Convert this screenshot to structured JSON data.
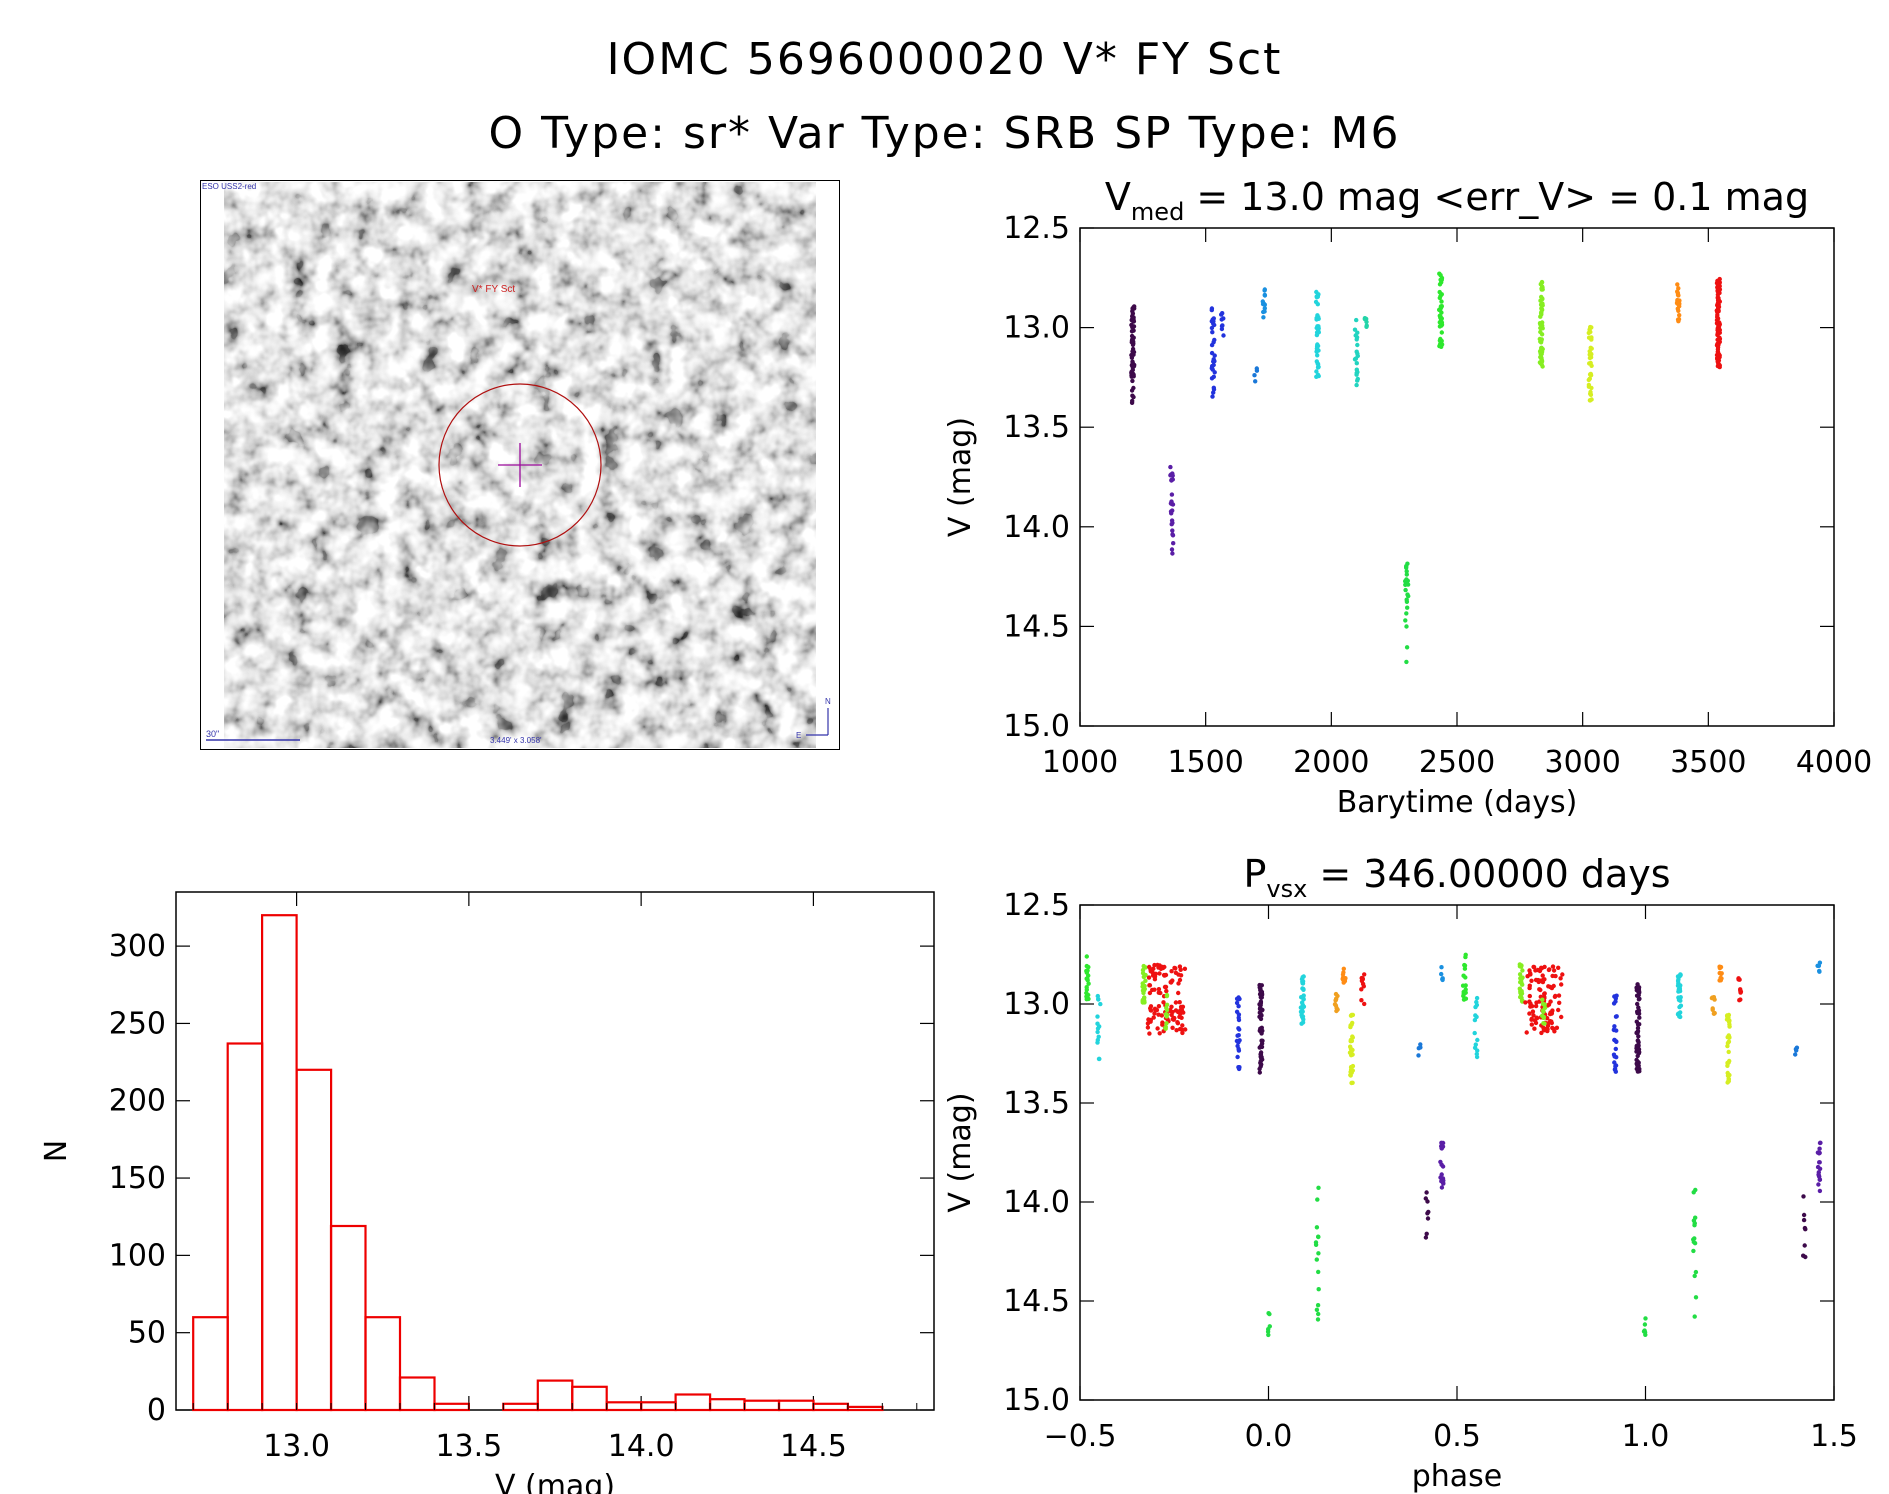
{
  "header": {
    "title": "IOMC 5696000020   V* FY Sct",
    "subtitle": "O Type: sr*  Var Type: SRB  SP Type: M6"
  },
  "finder": {
    "survey_label": "ESO USS2-red",
    "target_label": "V* FY Sct",
    "scale_label": "30\"",
    "size_label": "3.449' x 3.058'",
    "north_label": "N",
    "east_label": "E"
  },
  "chart_data": [
    {
      "id": "lightcurve",
      "type": "scatter",
      "title": "V_med = 13.0 mag <err_V> = 0.1 mag",
      "title_parts": {
        "pre": "V",
        "sub": "med",
        "post": " = 13.0 mag <err_V> = 0.1 mag"
      },
      "xlabel": "Barytime (days)",
      "ylabel": "V (mag)",
      "xlim": [
        1000,
        4000
      ],
      "ylim": [
        15.0,
        12.5
      ],
      "y_inverted": true,
      "xticks": [
        1000,
        1500,
        2000,
        2500,
        3000,
        3500,
        4000
      ],
      "yticks": [
        12.5,
        13.0,
        13.5,
        14.0,
        14.5,
        15.0
      ],
      "groups": [
        {
          "x": 1210,
          "y": [
            12.88,
            13.38
          ],
          "n": 60,
          "color": "#3d0a4a"
        },
        {
          "x": 1365,
          "y": [
            13.7,
            14.15
          ],
          "n": 25,
          "color": "#5a1ea6"
        },
        {
          "x": 1530,
          "y": [
            12.9,
            13.35
          ],
          "n": 30,
          "color": "#2233dd"
        },
        {
          "x": 1565,
          "y": [
            12.88,
            13.05
          ],
          "n": 8,
          "color": "#2233dd"
        },
        {
          "x": 1700,
          "y": [
            13.2,
            13.27
          ],
          "n": 4,
          "color": "#1a78d8"
        },
        {
          "x": 1730,
          "y": [
            12.8,
            12.95
          ],
          "n": 12,
          "color": "#1a90e0"
        },
        {
          "x": 1945,
          "y": [
            12.82,
            13.25
          ],
          "n": 40,
          "color": "#22d4dc"
        },
        {
          "x": 2100,
          "y": [
            12.95,
            13.3
          ],
          "n": 20,
          "color": "#22d4c0"
        },
        {
          "x": 2135,
          "y": [
            12.93,
            13.0
          ],
          "n": 6,
          "color": "#22d4a8"
        },
        {
          "x": 2300,
          "y": [
            14.18,
            14.68
          ],
          "n": 22,
          "color": "#22dd44"
        },
        {
          "x": 2435,
          "y": [
            12.72,
            13.1
          ],
          "n": 45,
          "color": "#2ee82e"
        },
        {
          "x": 2835,
          "y": [
            12.75,
            13.2
          ],
          "n": 55,
          "color": "#86ee22"
        },
        {
          "x": 3030,
          "y": [
            12.97,
            13.4
          ],
          "n": 35,
          "color": "#d6ee22"
        },
        {
          "x": 3380,
          "y": [
            12.75,
            13.0
          ],
          "n": 20,
          "color": "#ff8c14"
        },
        {
          "x": 3540,
          "y": [
            12.75,
            13.2
          ],
          "n": 120,
          "color": "#ee1111"
        }
      ]
    },
    {
      "id": "phased",
      "type": "scatter",
      "title": "P_vsx = 346.00000 days",
      "title_parts": {
        "pre": "P",
        "sub": "vsx",
        "post": " = 346.00000 days"
      },
      "xlabel": "phase",
      "ylabel": "V (mag)",
      "xlim": [
        -0.5,
        1.5
      ],
      "ylim": [
        15.0,
        12.5
      ],
      "y_inverted": true,
      "xticks": [
        -0.5,
        0.0,
        0.5,
        1.0,
        1.5
      ],
      "xtick_labels": [
        "−0.5",
        "0.0",
        "0.5",
        "1.0",
        "1.5"
      ],
      "yticks": [
        12.5,
        13.0,
        13.5,
        14.0,
        14.5,
        15.0
      ],
      "groups": [
        {
          "x": -0.48,
          "y": [
            12.75,
            13.0
          ],
          "n": 18,
          "color": "#2ee82e"
        },
        {
          "x": -0.45,
          "y": [
            12.95,
            13.3
          ],
          "n": 14,
          "color": "#22d4dc"
        },
        {
          "x": -0.33,
          "y": [
            12.8,
            13.0
          ],
          "n": 25,
          "color": "#86ee22"
        },
        {
          "x": -0.27,
          "y": [
            12.8,
            13.15
          ],
          "n": 110,
          "color": "#ee1111",
          "spread": 0.1
        },
        {
          "x": -0.27,
          "y": [
            12.95,
            13.15
          ],
          "n": 12,
          "color": "#86ee22"
        },
        {
          "x": -0.08,
          "y": [
            12.95,
            13.35
          ],
          "n": 25,
          "color": "#2233dd"
        },
        {
          "x": -0.02,
          "y": [
            12.9,
            13.35
          ],
          "n": 55,
          "color": "#3d0a4a"
        },
        {
          "x": 0.0,
          "y": [
            14.55,
            14.7
          ],
          "n": 6,
          "color": "#22dd44"
        },
        {
          "x": 0.09,
          "y": [
            12.85,
            13.1
          ],
          "n": 30,
          "color": "#22d4dc"
        },
        {
          "x": 0.13,
          "y": [
            13.9,
            14.6
          ],
          "n": 15,
          "color": "#22dd44"
        },
        {
          "x": 0.18,
          "y": [
            12.95,
            13.05
          ],
          "n": 10,
          "color": "#f0a020"
        },
        {
          "x": 0.2,
          "y": [
            12.8,
            12.9
          ],
          "n": 10,
          "color": "#ff8c14"
        },
        {
          "x": 0.22,
          "y": [
            13.05,
            13.4
          ],
          "n": 30,
          "color": "#d6ee22"
        },
        {
          "x": 0.25,
          "y": [
            12.85,
            13.0
          ],
          "n": 10,
          "color": "#ee1111"
        },
        {
          "x": 0.4,
          "y": [
            13.2,
            13.27
          ],
          "n": 4,
          "color": "#1a78d8"
        },
        {
          "x": 0.42,
          "y": [
            13.95,
            14.3
          ],
          "n": 8,
          "color": "#3d0a4a"
        },
        {
          "x": 0.46,
          "y": [
            13.7,
            13.95
          ],
          "n": 18,
          "color": "#5a1ea6"
        },
        {
          "x": 0.46,
          "y": [
            12.78,
            12.9
          ],
          "n": 5,
          "color": "#1a90e0"
        },
        {
          "x": 0.52,
          "y": [
            12.75,
            13.0
          ],
          "n": 18,
          "color": "#2ee82e"
        },
        {
          "x": 0.55,
          "y": [
            12.95,
            13.3
          ],
          "n": 14,
          "color": "#22d4dc"
        },
        {
          "x": 0.67,
          "y": [
            12.8,
            13.0
          ],
          "n": 25,
          "color": "#86ee22"
        },
        {
          "x": 0.73,
          "y": [
            12.8,
            13.15
          ],
          "n": 110,
          "color": "#ee1111",
          "spread": 0.1
        },
        {
          "x": 0.73,
          "y": [
            12.95,
            13.15
          ],
          "n": 12,
          "color": "#86ee22"
        },
        {
          "x": 0.92,
          "y": [
            12.95,
            13.35
          ],
          "n": 25,
          "color": "#2233dd"
        },
        {
          "x": 0.98,
          "y": [
            12.9,
            13.35
          ],
          "n": 55,
          "color": "#3d0a4a"
        },
        {
          "x": 1.0,
          "y": [
            14.55,
            14.7
          ],
          "n": 6,
          "color": "#22dd44"
        },
        {
          "x": 1.09,
          "y": [
            12.85,
            13.1
          ],
          "n": 30,
          "color": "#22d4dc"
        },
        {
          "x": 1.13,
          "y": [
            13.9,
            14.6
          ],
          "n": 15,
          "color": "#22dd44"
        },
        {
          "x": 1.18,
          "y": [
            12.95,
            13.05
          ],
          "n": 10,
          "color": "#f0a020"
        },
        {
          "x": 1.2,
          "y": [
            12.8,
            12.9
          ],
          "n": 10,
          "color": "#ff8c14"
        },
        {
          "x": 1.22,
          "y": [
            13.05,
            13.4
          ],
          "n": 30,
          "color": "#d6ee22"
        },
        {
          "x": 1.25,
          "y": [
            12.85,
            13.0
          ],
          "n": 10,
          "color": "#ee1111"
        },
        {
          "x": 1.4,
          "y": [
            13.2,
            13.27
          ],
          "n": 4,
          "color": "#1a78d8"
        },
        {
          "x": 1.42,
          "y": [
            13.95,
            14.3
          ],
          "n": 8,
          "color": "#3d0a4a"
        },
        {
          "x": 1.46,
          "y": [
            13.7,
            13.95
          ],
          "n": 18,
          "color": "#5a1ea6"
        },
        {
          "x": 1.46,
          "y": [
            12.78,
            12.9
          ],
          "n": 5,
          "color": "#1a90e0"
        }
      ]
    },
    {
      "id": "histogram",
      "type": "bar",
      "title": "",
      "xlabel": "V (mag)",
      "ylabel": "N",
      "xlim": [
        12.65,
        14.85
      ],
      "ylim": [
        0,
        335
      ],
      "xticks": [
        13.0,
        13.5,
        14.0,
        14.5
      ],
      "yticks": [
        0,
        50,
        100,
        150,
        200,
        250,
        300
      ],
      "bin_width": 0.1,
      "bin_starts": [
        12.7,
        12.8,
        12.9,
        13.0,
        13.1,
        13.2,
        13.3,
        13.4,
        13.5,
        13.6,
        13.7,
        13.8,
        13.9,
        14.0,
        14.1,
        14.2,
        14.3,
        14.4,
        14.5,
        14.6,
        14.7
      ],
      "counts": [
        60,
        237,
        320,
        220,
        119,
        60,
        21,
        4,
        0,
        4,
        19,
        15,
        5,
        5,
        10,
        7,
        6,
        6,
        4,
        2,
        0
      ],
      "bar_color": "#ee0000"
    }
  ]
}
